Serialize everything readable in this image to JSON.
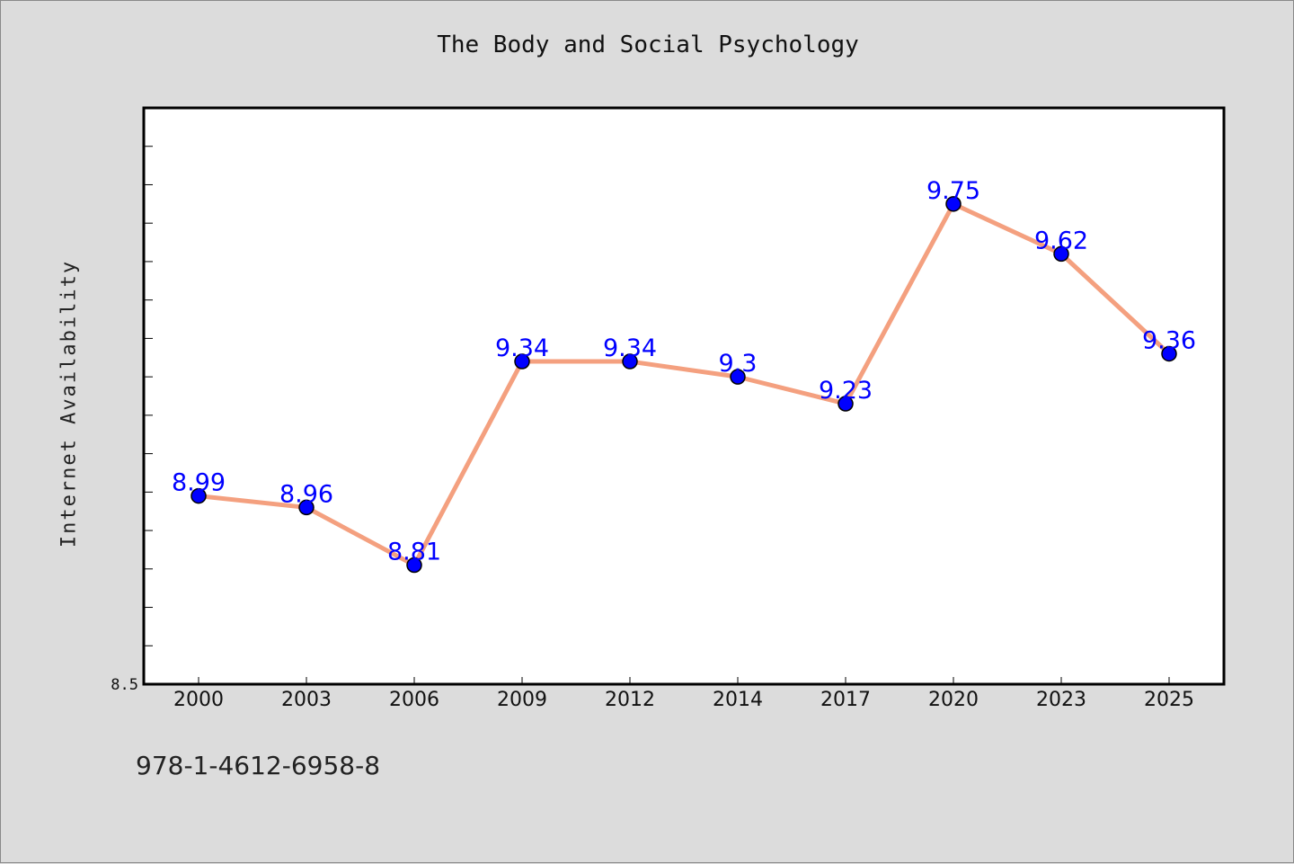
{
  "chart_data": {
    "type": "line",
    "title": "The Body and Social Psychology",
    "xlabel": "",
    "ylabel": "Internet Availability",
    "categories": [
      "2000",
      "2003",
      "2006",
      "2009",
      "2012",
      "2014",
      "2017",
      "2020",
      "2023",
      "2025"
    ],
    "series": [
      {
        "values": [
          8.99,
          8.96,
          8.81,
          9.34,
          9.34,
          9.3,
          9.23,
          9.75,
          9.62,
          9.36
        ]
      }
    ],
    "data_labels": [
      "8.99",
      "8.96",
      "8.81",
      "9.34",
      "9.34",
      "9.3",
      "9.23",
      "9.75",
      "9.62",
      "9.36"
    ],
    "ylim": [
      8.5,
      10.0
    ],
    "y_tick_label": "8.5",
    "grid": false,
    "legend": "none",
    "colors": {
      "line": "#f4a07f",
      "marker": "#0000ff",
      "label": "#0000ff",
      "axis": "#000000"
    }
  },
  "footer": {
    "isbn": "978-1-4612-6958-8"
  }
}
